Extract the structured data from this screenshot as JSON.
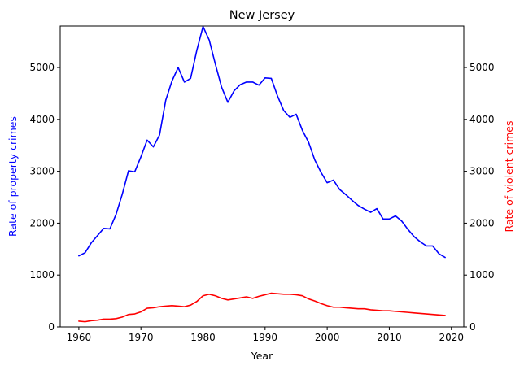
{
  "chart_data": {
    "type": "line",
    "title": "New Jersey",
    "xlabel": "Year",
    "ylabel_left": "Rate of property crimes",
    "ylabel_right": "Rate of violent crimes",
    "xlim": [
      1957,
      2022
    ],
    "ylim_left": [
      0,
      5800
    ],
    "ylim_right": [
      0,
      5800
    ],
    "x_ticks": [
      1960,
      1970,
      1980,
      1990,
      2000,
      2010,
      2020
    ],
    "y_ticks": [
      0,
      1000,
      2000,
      3000,
      4000,
      5000
    ],
    "grid": false,
    "colors": {
      "property": "#0000ff",
      "violent": "#ff0000"
    },
    "x": [
      1960,
      1961,
      1962,
      1963,
      1964,
      1965,
      1966,
      1967,
      1968,
      1969,
      1970,
      1971,
      1972,
      1973,
      1974,
      1975,
      1976,
      1977,
      1978,
      1979,
      1980,
      1981,
      1982,
      1983,
      1984,
      1985,
      1986,
      1987,
      1988,
      1989,
      1990,
      1991,
      1992,
      1993,
      1994,
      1995,
      1996,
      1997,
      1998,
      1999,
      2000,
      2001,
      2002,
      2003,
      2004,
      2005,
      2006,
      2007,
      2008,
      2009,
      2010,
      2011,
      2012,
      2013,
      2014,
      2015,
      2016,
      2017,
      2018,
      2019
    ],
    "series": [
      {
        "name": "Rate of property crimes",
        "axis": "left",
        "values": [
          1370,
          1430,
          1620,
          1760,
          1900,
          1890,
          2170,
          2560,
          3010,
          2990,
          3280,
          3600,
          3470,
          3700,
          4370,
          4740,
          5000,
          4720,
          4790,
          5330,
          5790,
          5530,
          5060,
          4620,
          4330,
          4550,
          4670,
          4720,
          4720,
          4660,
          4800,
          4790,
          4450,
          4170,
          4040,
          4100,
          3790,
          3560,
          3220,
          2980,
          2780,
          2830,
          2650,
          2550,
          2440,
          2340,
          2270,
          2210,
          2280,
          2080,
          2080,
          2140,
          2040,
          1880,
          1740,
          1640,
          1560,
          1560,
          1410,
          1340
        ]
      },
      {
        "name": "Rate of violent crimes",
        "axis": "right",
        "values": [
          110,
          100,
          120,
          130,
          150,
          150,
          160,
          190,
          240,
          250,
          290,
          360,
          370,
          390,
          400,
          410,
          400,
          390,
          420,
          490,
          600,
          630,
          600,
          550,
          520,
          540,
          560,
          580,
          550,
          590,
          620,
          650,
          640,
          630,
          630,
          620,
          600,
          540,
          500,
          450,
          410,
          380,
          380,
          370,
          360,
          350,
          350,
          330,
          320,
          310,
          310,
          300,
          290,
          280,
          270,
          260,
          250,
          240,
          230,
          220
        ]
      }
    ]
  }
}
